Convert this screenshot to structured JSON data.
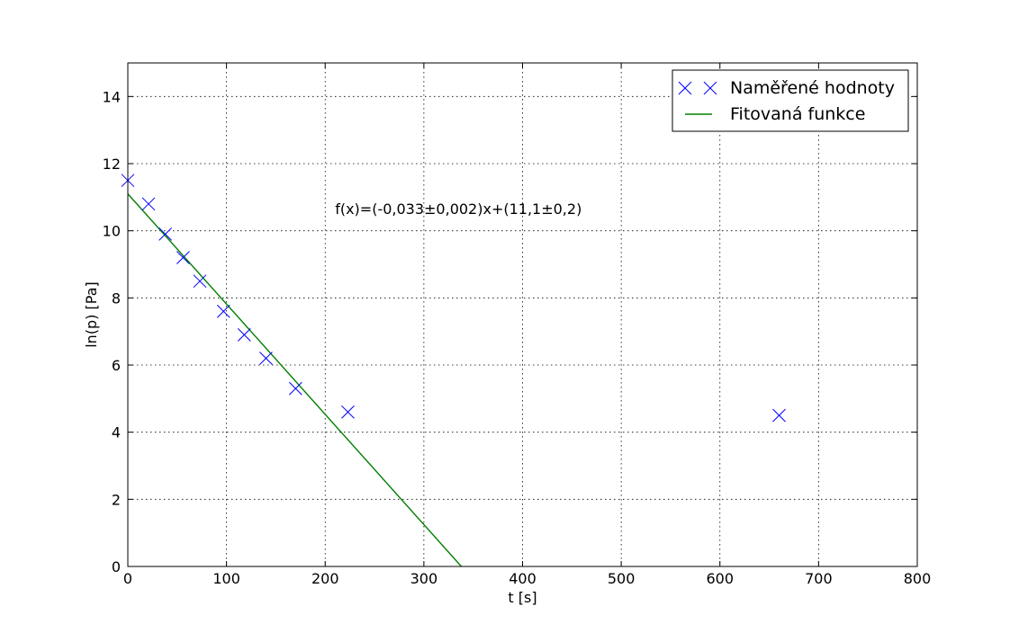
{
  "chart_data": {
    "type": "scatter",
    "xlabel": "t [s]",
    "ylabel": "ln(p) [Pa]",
    "xlim": [
      0,
      800
    ],
    "ylim": [
      0,
      15
    ],
    "xticks": [
      0,
      100,
      200,
      300,
      400,
      500,
      600,
      700,
      800
    ],
    "yticks": [
      0,
      2,
      4,
      6,
      8,
      10,
      12,
      14
    ],
    "grid": true,
    "legend_position": "top-right",
    "annotation": "f(x)=(-0,033±0,002)x+(11,1±0,2)",
    "series": [
      {
        "name": "Naměřené hodnoty",
        "kind": "scatter",
        "marker": "x",
        "color": "#0000ff",
        "x": [
          0,
          21,
          38,
          56,
          73,
          97,
          118,
          140,
          170,
          223,
          660
        ],
        "y": [
          11.5,
          10.8,
          9.9,
          9.2,
          8.5,
          7.6,
          6.9,
          6.2,
          5.3,
          4.6,
          4.5
        ]
      },
      {
        "name": "Fitovaná funkce",
        "kind": "line",
        "color": "#008000",
        "slope": -0.033,
        "intercept": 11.1,
        "x": [
          0,
          338
        ],
        "y": [
          11.1,
          0
        ]
      }
    ]
  }
}
